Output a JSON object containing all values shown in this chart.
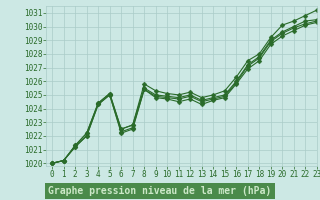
{
  "title": "Graphe pression niveau de la mer (hPa)",
  "xlim": [
    -0.5,
    23
  ],
  "ylim": [
    1019.8,
    1031.5
  ],
  "yticks": [
    1020,
    1021,
    1022,
    1023,
    1024,
    1025,
    1026,
    1027,
    1028,
    1029,
    1030,
    1031
  ],
  "xticks": [
    0,
    1,
    2,
    3,
    4,
    5,
    6,
    7,
    8,
    9,
    10,
    11,
    12,
    13,
    14,
    15,
    16,
    17,
    18,
    19,
    20,
    21,
    22,
    23
  ],
  "bg_color": "#cce8e4",
  "grid_color": "#aaccc8",
  "line_color": "#2a6b2a",
  "title_bg": "#4a8a4a",
  "title_fg": "#cce8c8",
  "series": [
    [
      1020.0,
      1020.2,
      1021.3,
      1022.2,
      1024.4,
      1025.1,
      1022.5,
      1022.8,
      1025.8,
      1025.3,
      1025.1,
      1025.0,
      1025.2,
      1024.8,
      1025.0,
      1025.3,
      1026.3,
      1027.5,
      1028.0,
      1029.2,
      1030.1,
      1030.4,
      1030.8,
      1031.2
    ],
    [
      1020.0,
      1020.2,
      1021.3,
      1022.2,
      1024.4,
      1025.1,
      1022.5,
      1022.8,
      1025.5,
      1025.0,
      1024.9,
      1024.8,
      1025.0,
      1024.6,
      1024.8,
      1025.0,
      1026.0,
      1027.2,
      1027.8,
      1029.0,
      1029.6,
      1030.0,
      1030.4,
      1030.5
    ],
    [
      1020.0,
      1020.2,
      1021.2,
      1022.0,
      1024.3,
      1025.0,
      1022.3,
      1022.6,
      1025.4,
      1024.9,
      1024.8,
      1024.7,
      1024.9,
      1024.5,
      1024.7,
      1024.9,
      1025.9,
      1027.1,
      1027.7,
      1028.9,
      1029.5,
      1029.9,
      1030.2,
      1030.4
    ],
    [
      1020.0,
      1020.2,
      1021.2,
      1022.0,
      1024.3,
      1025.0,
      1022.2,
      1022.5,
      1025.4,
      1024.8,
      1024.7,
      1024.5,
      1024.7,
      1024.3,
      1024.6,
      1024.8,
      1025.8,
      1026.9,
      1027.5,
      1028.7,
      1029.3,
      1029.7,
      1030.1,
      1030.3
    ]
  ],
  "marker_size": 2.5,
  "line_width": 0.8,
  "font_color": "#2a6b2a",
  "tick_fontsize": 5.5,
  "title_fontsize": 7.0
}
